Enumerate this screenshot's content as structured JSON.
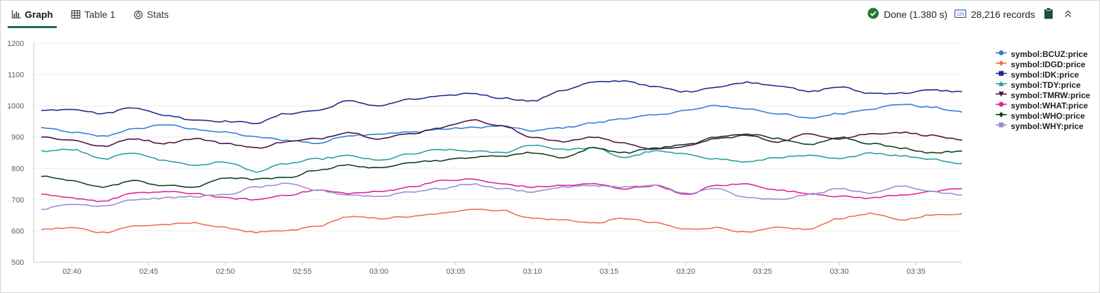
{
  "toolbar": {
    "tabs": [
      {
        "label": "Graph",
        "icon": "bar-chart-icon",
        "active": true
      },
      {
        "label": "Table 1",
        "icon": "table-icon",
        "active": false
      },
      {
        "label": "Stats",
        "icon": "stats-icon",
        "active": false
      }
    ],
    "status": {
      "done_label": "Done (1.380 s)",
      "records_label": "28,216 records",
      "success_color": "#1f7a35"
    }
  },
  "chart_data": {
    "type": "line",
    "title": "",
    "xlabel": "",
    "ylabel": "",
    "x_ticks": [
      "02:40",
      "02:45",
      "02:50",
      "02:55",
      "03:00",
      "03:05",
      "03:10",
      "03:15",
      "03:20",
      "03:25",
      "03:30",
      "03:35"
    ],
    "xlim": [
      "02:37:30",
      "03:38:00"
    ],
    "y_ticks": [
      "1200",
      "1100",
      "1000",
      "900",
      "800",
      "700",
      "600",
      "500"
    ],
    "ylim": [
      500,
      1200
    ],
    "grid": "horizontal",
    "legend_position": "right",
    "x": [
      "02:38",
      "02:40",
      "02:42",
      "02:44",
      "02:46",
      "02:48",
      "02:50",
      "02:52",
      "02:54",
      "02:56",
      "02:58",
      "03:00",
      "03:02",
      "03:04",
      "03:06",
      "03:08",
      "03:10",
      "03:12",
      "03:14",
      "03:16",
      "03:18",
      "03:20",
      "03:22",
      "03:24",
      "03:26",
      "03:28",
      "03:30",
      "03:32",
      "03:34",
      "03:36",
      "03:38"
    ],
    "series": [
      {
        "name": "symbol:BCUZ:price",
        "color": "#2f7ed8",
        "marker": "circle",
        "values": [
          930,
          915,
          903,
          925,
          940,
          925,
          915,
          900,
          890,
          880,
          905,
          910,
          915,
          925,
          930,
          935,
          920,
          930,
          945,
          960,
          970,
          985,
          1000,
          990,
          975,
          960,
          975,
          990,
          1005,
          995,
          980
        ]
      },
      {
        "name": "symbol:IDGD:price",
        "color": "#e8704e",
        "marker": "diamond",
        "values": [
          605,
          610,
          595,
          615,
          620,
          625,
          610,
          595,
          600,
          615,
          645,
          640,
          645,
          655,
          670,
          665,
          640,
          635,
          625,
          640,
          625,
          605,
          610,
          595,
          610,
          605,
          640,
          655,
          635,
          650,
          655
        ]
      },
      {
        "name": "symbol:IDK:price",
        "color": "#1a2b8c",
        "marker": "square",
        "values": [
          985,
          990,
          975,
          995,
          970,
          955,
          950,
          945,
          975,
          985,
          1015,
          1000,
          1020,
          1030,
          1040,
          1025,
          1015,
          1050,
          1075,
          1080,
          1060,
          1045,
          1060,
          1075,
          1065,
          1045,
          1060,
          1040,
          1040,
          1050,
          1045
        ]
      },
      {
        "name": "symbol:TDY:price",
        "color": "#2a9d9f",
        "marker": "triangle",
        "values": [
          855,
          860,
          830,
          850,
          825,
          810,
          820,
          790,
          815,
          830,
          840,
          825,
          845,
          860,
          855,
          850,
          875,
          860,
          865,
          835,
          855,
          845,
          830,
          820,
          835,
          840,
          830,
          850,
          840,
          830,
          815
        ]
      },
      {
        "name": "symbol:TMRW:price",
        "color": "#4a1244",
        "marker": "triangle-down",
        "values": [
          900,
          890,
          870,
          895,
          880,
          895,
          880,
          865,
          885,
          895,
          915,
          895,
          910,
          930,
          955,
          935,
          900,
          885,
          900,
          880,
          860,
          870,
          895,
          905,
          885,
          910,
          895,
          910,
          915,
          905,
          890
        ]
      },
      {
        "name": "symbol:WHAT:price",
        "color": "#e0248f",
        "marker": "circle",
        "values": [
          715,
          705,
          695,
          720,
          725,
          720,
          705,
          700,
          715,
          730,
          720,
          725,
          740,
          760,
          765,
          750,
          740,
          745,
          750,
          735,
          745,
          715,
          745,
          750,
          730,
          720,
          710,
          705,
          715,
          725,
          735
        ]
      },
      {
        "name": "symbol:WHO:price",
        "color": "#0e3b22",
        "marker": "diamond",
        "values": [
          775,
          760,
          740,
          760,
          745,
          740,
          770,
          765,
          770,
          795,
          810,
          800,
          820,
          825,
          835,
          840,
          850,
          835,
          865,
          850,
          865,
          875,
          900,
          910,
          895,
          875,
          900,
          880,
          865,
          850,
          855
        ]
      },
      {
        "name": "symbol:WHY:price",
        "color": "#9c8ad8",
        "marker": "square",
        "values": [
          670,
          685,
          680,
          700,
          705,
          710,
          715,
          740,
          750,
          730,
          715,
          710,
          725,
          735,
          750,
          735,
          725,
          740,
          745,
          740,
          745,
          720,
          735,
          705,
          700,
          715,
          735,
          720,
          745,
          725,
          715
        ]
      }
    ]
  }
}
